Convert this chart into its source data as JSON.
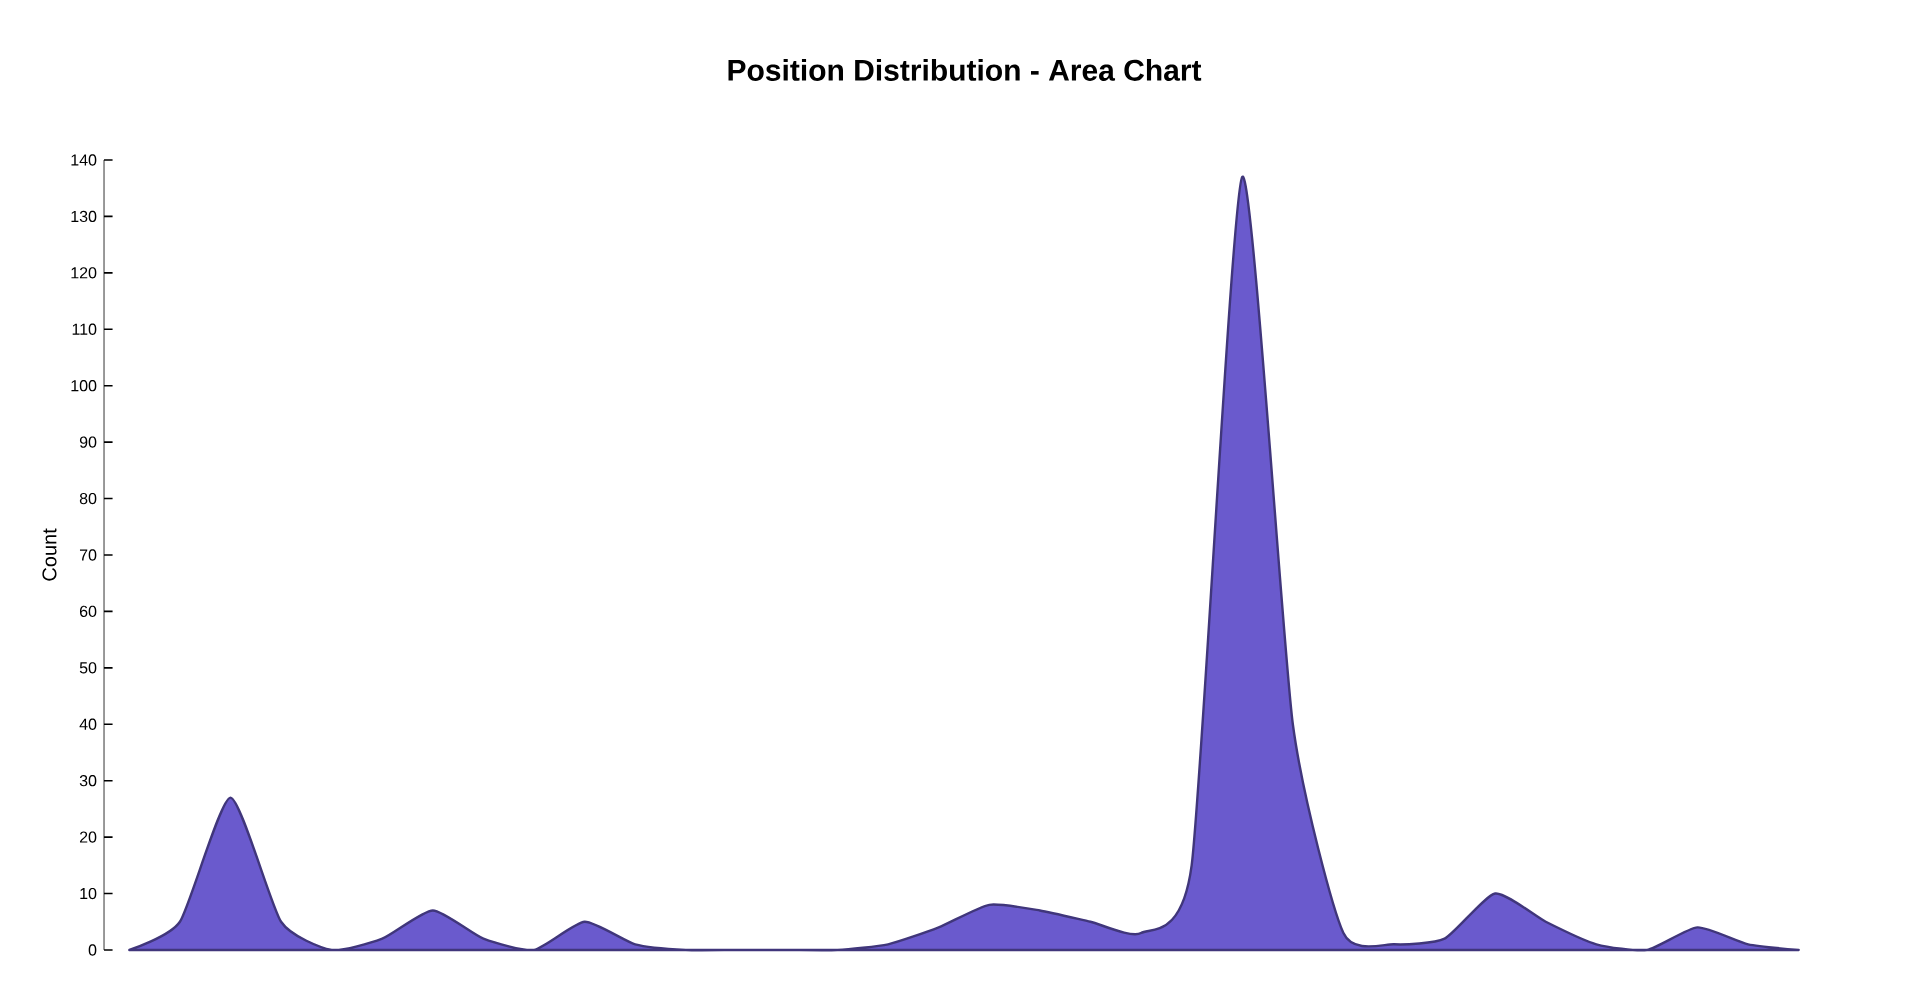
{
  "chart_data": {
    "type": "area",
    "title": "Position Distribution - Area Chart",
    "ylabel": "Count",
    "categories": [
      null,
      null,
      null,
      null,
      null,
      null,
      null,
      null,
      null,
      null,
      null,
      null,
      null,
      null,
      null,
      null,
      null,
      null,
      null,
      null,
      null,
      null,
      null,
      null,
      null,
      null,
      null,
      null,
      null,
      null,
      null,
      null,
      null,
      null
    ],
    "series": [
      {
        "color": "#6a5acd",
        "values": [
          0,
          5,
          27,
          5,
          0,
          2,
          7,
          2,
          0,
          5,
          1,
          0,
          0,
          0,
          0,
          1,
          4,
          8,
          7,
          5,
          3,
          15,
          137,
          40,
          3,
          1,
          2,
          10,
          5,
          1,
          0,
          4,
          1,
          0
        ]
      }
    ],
    "ylim": [
      0,
      140
    ],
    "yticks": [
      0,
      10,
      20,
      30,
      40,
      50,
      60,
      70,
      80,
      90,
      100,
      110,
      120,
      130,
      140
    ],
    "tick_labels": "y"
  }
}
